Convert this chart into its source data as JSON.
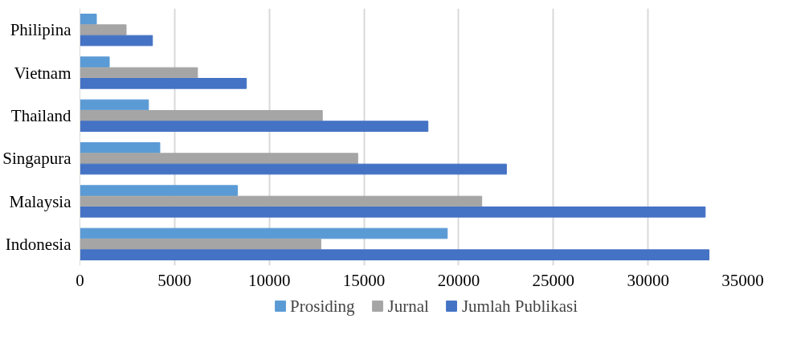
{
  "chart_data": {
    "type": "bar",
    "orientation": "horizontal",
    "categories": [
      "Philipina",
      "Vietnam",
      "Thailand",
      "Singapura",
      "Malaysia",
      "Indonesia"
    ],
    "series": [
      {
        "name": "Prosiding",
        "color": "#5b9bd5",
        "values": [
          870,
          1550,
          3620,
          4220,
          8320,
          19400
        ]
      },
      {
        "name": "Jurnal",
        "color": "#a5a5a5",
        "values": [
          2440,
          6210,
          12800,
          14670,
          21220,
          12720
        ]
      },
      {
        "name": "Jumlah Publikasi",
        "color": "#4472c4",
        "values": [
          3830,
          8790,
          18380,
          22520,
          33020,
          33220
        ]
      }
    ],
    "xlim": [
      0,
      35000
    ],
    "xticks": [
      0,
      5000,
      10000,
      15000,
      20000,
      25000,
      30000,
      35000
    ],
    "grid": "x",
    "legend": "bottom"
  }
}
